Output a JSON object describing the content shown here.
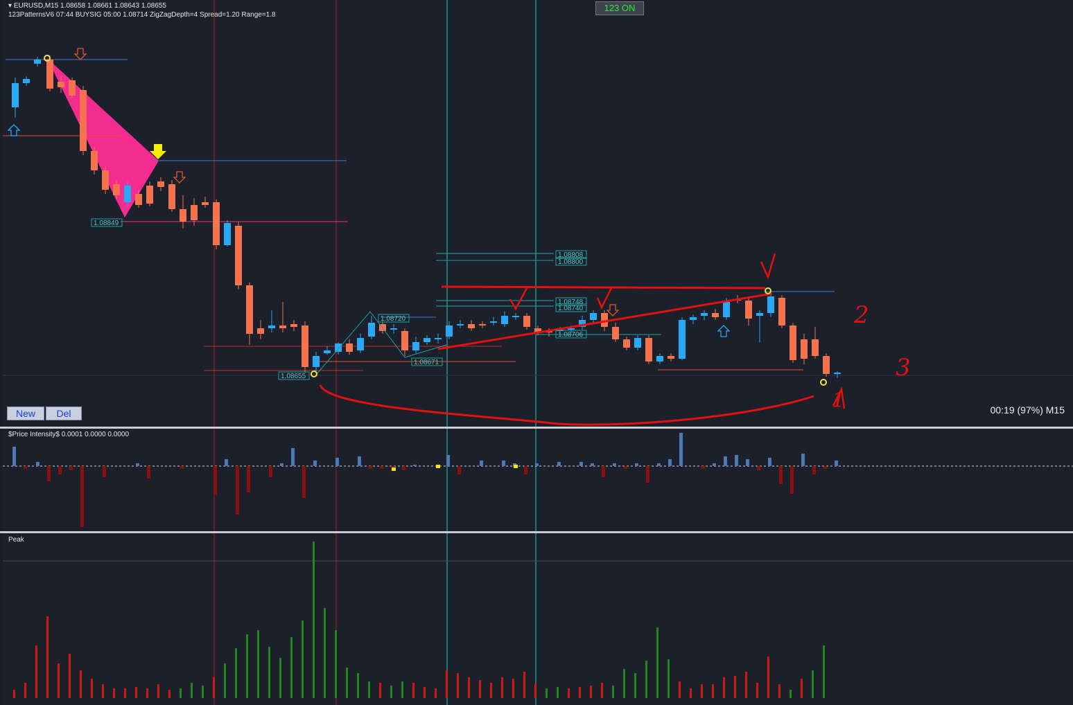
{
  "window": {
    "title": "EURUSD,M15  1.08658 1.08661 1.08643 1.08655",
    "indicator_line": "123PatternsV6  07:44  BUYSIG  05:00  1.08714  ZigZagDepth=4   Spread=1.20   Range=1.8",
    "status_badge": "123 ON",
    "timer": "00:19 (97%) M15"
  },
  "buttons": {
    "new_label": "New",
    "del_label": "Del"
  },
  "subpanes": {
    "price_intensity_title": "$Price Intensity$ 0.0001 0.0000 0.0000",
    "peak_title": "Peak"
  },
  "price_labels": [
    "1.08849",
    "1.08655",
    "1.08720",
    "1.08671",
    "1.08808",
    "1.08800",
    "1.08748",
    "1.08740",
    "1.08706"
  ],
  "annotations": [
    "2",
    "3",
    "1"
  ],
  "colors": {
    "background": "#1c202b",
    "bull_candle": "#29a8f5",
    "bear_candle": "#f5734e",
    "pattern_fill": "#ff2d96",
    "vertical_red": "#8b1a1a",
    "vertical_teal": "#1fa3a3",
    "annotation_red": "#e51010"
  },
  "chart_data": [
    {
      "type": "candlestick",
      "symbol": "EURUSD",
      "timeframe": "M15",
      "ohlc_current": {
        "open": 1.08658,
        "high": 1.08661,
        "low": 1.08643,
        "close": 1.08655
      },
      "labeled_levels": [
        1.08849,
        1.08655,
        1.0872,
        1.08671,
        1.08808,
        1.088,
        1.08748,
        1.0874,
        1.08706
      ]
    },
    {
      "type": "bar",
      "name": "$Price Intensity$",
      "values_shown": [
        0.0001,
        0.0,
        0.0
      ]
    },
    {
      "type": "bar",
      "name": "Peak"
    }
  ]
}
